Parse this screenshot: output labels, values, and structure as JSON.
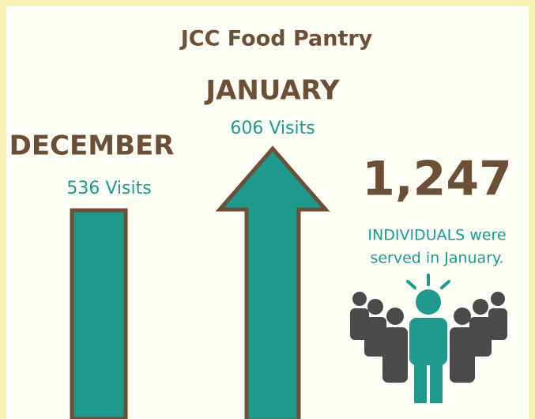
{
  "title": "JCC Food Pantry",
  "december": {
    "label": "DECEMBER",
    "visits": "536 Visits"
  },
  "january": {
    "label": "JANUARY",
    "visits": "606 Visits"
  },
  "individuals": {
    "count": "1,247",
    "text_lines": [
      "INDIVIDUALS were",
      "served in January."
    ]
  }
}
